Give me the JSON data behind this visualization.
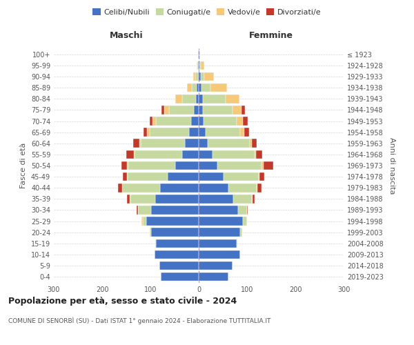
{
  "age_groups": [
    "0-4",
    "5-9",
    "10-14",
    "15-19",
    "20-24",
    "25-29",
    "30-34",
    "35-39",
    "40-44",
    "45-49",
    "50-54",
    "55-59",
    "60-64",
    "65-69",
    "70-74",
    "75-79",
    "80-84",
    "85-89",
    "90-94",
    "95-99",
    "100+"
  ],
  "birth_years": [
    "2019-2023",
    "2014-2018",
    "2009-2013",
    "2004-2008",
    "1999-2003",
    "1994-1998",
    "1989-1993",
    "1984-1988",
    "1979-1983",
    "1974-1978",
    "1969-1973",
    "1964-1968",
    "1959-1963",
    "1954-1958",
    "1949-1953",
    "1944-1948",
    "1939-1943",
    "1934-1938",
    "1929-1933",
    "1924-1928",
    "≤ 1923"
  ],
  "males": {
    "celibi": [
      78,
      82,
      92,
      88,
      98,
      108,
      98,
      90,
      80,
      65,
      48,
      35,
      28,
      20,
      16,
      10,
      6,
      4,
      2,
      1,
      1
    ],
    "coniugati": [
      0,
      0,
      0,
      2,
      3,
      8,
      28,
      52,
      78,
      82,
      98,
      98,
      92,
      82,
      72,
      52,
      28,
      10,
      5,
      2,
      0
    ],
    "vedovi": [
      0,
      0,
      0,
      0,
      0,
      2,
      0,
      1,
      1,
      2,
      2,
      2,
      3,
      5,
      8,
      10,
      14,
      10,
      5,
      2,
      0
    ],
    "divorziati": [
      0,
      0,
      0,
      0,
      0,
      0,
      3,
      5,
      8,
      8,
      12,
      15,
      12,
      8,
      6,
      5,
      0,
      0,
      0,
      0,
      0
    ]
  },
  "females": {
    "nubili": [
      62,
      70,
      85,
      78,
      85,
      92,
      82,
      72,
      62,
      52,
      38,
      28,
      18,
      14,
      10,
      8,
      8,
      6,
      4,
      2,
      1
    ],
    "coniugate": [
      0,
      0,
      0,
      2,
      5,
      8,
      18,
      38,
      58,
      72,
      92,
      88,
      88,
      72,
      68,
      62,
      48,
      18,
      8,
      2,
      0
    ],
    "vedove": [
      0,
      0,
      0,
      0,
      0,
      0,
      0,
      1,
      2,
      2,
      4,
      2,
      4,
      8,
      14,
      18,
      28,
      34,
      20,
      8,
      2
    ],
    "divorziate": [
      0,
      0,
      0,
      0,
      0,
      0,
      2,
      5,
      8,
      10,
      20,
      14,
      10,
      10,
      10,
      8,
      0,
      0,
      0,
      0,
      0
    ]
  },
  "color_celibi": "#4472c4",
  "color_coniugati": "#c5d9a0",
  "color_vedovi": "#f5c87a",
  "color_divorziati": "#c0392b",
  "title": "Popolazione per età, sesso e stato civile - 2024",
  "subtitle": "COMUNE DI SENORBÌ (SU) - Dati ISTAT 1° gennaio 2024 - Elaborazione TUTTITALIA.IT",
  "xlabel_left": "Maschi",
  "xlabel_right": "Femmine",
  "ylabel_left": "Fasce di età",
  "ylabel_right": "Anni di nascita",
  "xlim": 300,
  "background_color": "#ffffff",
  "grid_color": "#cccccc"
}
